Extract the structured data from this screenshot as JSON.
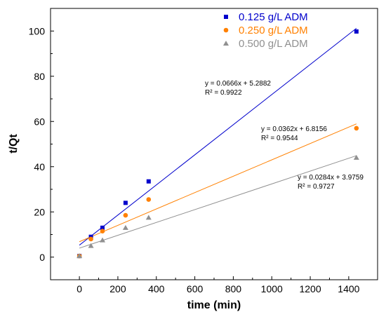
{
  "chart_data": {
    "type": "scatter",
    "xlabel": "time (min)",
    "ylabel": "t/Qt",
    "xlim": [
      -150,
      1550
    ],
    "ylim": [
      -10,
      110
    ],
    "xticks": [
      0,
      200,
      400,
      600,
      800,
      1000,
      1200,
      1400
    ],
    "yticks": [
      0,
      20,
      40,
      60,
      80,
      100
    ],
    "xtick_labels": [
      "0",
      "200",
      "400",
      "600",
      "800",
      "1000",
      "1200",
      "1400"
    ],
    "ytick_labels": [
      "0",
      "20",
      "40",
      "60",
      "80",
      "100"
    ],
    "grid": false,
    "legend_position": "top-right",
    "series": [
      {
        "name": "0.125 g/L ADM",
        "color": "#0000cc",
        "marker": "square",
        "x": [
          0,
          60,
          120,
          240,
          360,
          1440
        ],
        "y": [
          0.5,
          9.0,
          13.0,
          24.0,
          33.5,
          99.8
        ],
        "fit": {
          "slope": 0.0666,
          "intercept": 5.2882,
          "equation": "y = 0.0666x + 5.2882",
          "r2": "R² = 0.9922"
        }
      },
      {
        "name": "0.250 g/L ADM",
        "color": "#ff8000",
        "marker": "circle",
        "x": [
          0,
          60,
          120,
          240,
          360,
          1440
        ],
        "y": [
          0.5,
          8.0,
          11.5,
          18.5,
          25.5,
          57.0
        ],
        "fit": {
          "slope": 0.0362,
          "intercept": 6.8156,
          "equation": "y = 0.0362x + 6.8156",
          "r2": "R² = 0.9544"
        }
      },
      {
        "name": "0.500 g/L ADM",
        "color": "#909090",
        "marker": "triangle",
        "x": [
          0,
          60,
          120,
          240,
          360,
          1440
        ],
        "y": [
          0.5,
          5.0,
          7.5,
          13.0,
          17.5,
          44.0
        ],
        "fit": {
          "slope": 0.0284,
          "intercept": 3.9759,
          "equation": "y = 0.0284x + 3.9759",
          "r2": "R² = 0.9727"
        }
      }
    ]
  }
}
